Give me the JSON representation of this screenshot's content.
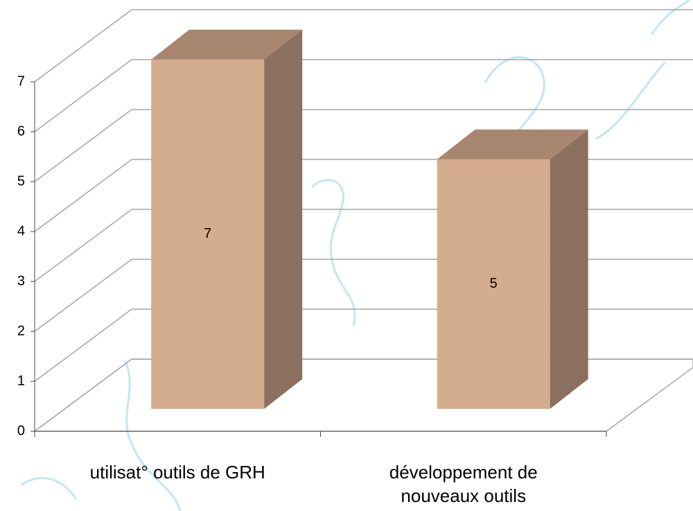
{
  "chart_data": {
    "type": "bar3d",
    "categories": [
      "utilisat° outils de GRH",
      "développement de nouveaux outils"
    ],
    "values": [
      7,
      5
    ],
    "color": "#d4ac8e",
    "ylim": [
      0,
      7
    ],
    "yticks": [
      0,
      1,
      2,
      3,
      4,
      5,
      6,
      7
    ],
    "grid": true
  }
}
